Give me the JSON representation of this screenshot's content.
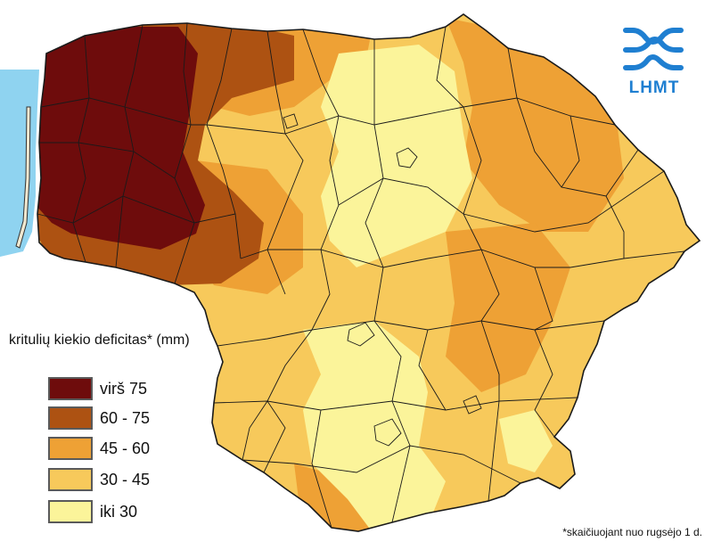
{
  "legend": {
    "title": "kritulių kiekio deficitas* (mm)",
    "items": [
      {
        "label": "virš 75",
        "color": "#6e0c0c"
      },
      {
        "label": "60 - 75",
        "color": "#ad5212"
      },
      {
        "label": "45 - 60",
        "color": "#eea135"
      },
      {
        "label": "30 - 45",
        "color": "#f7c95b"
      },
      {
        "label": "iki 30",
        "color": "#fbf49a"
      }
    ]
  },
  "footnote": "*skaičiuojant nuo rugsėjo 1 d.",
  "logo": {
    "text": "LHMT",
    "color": "#1f7fd1"
  },
  "colors": {
    "sea": "#8fd3f0",
    "boundary": "#1a1a1a",
    "background": "#ffffff"
  }
}
